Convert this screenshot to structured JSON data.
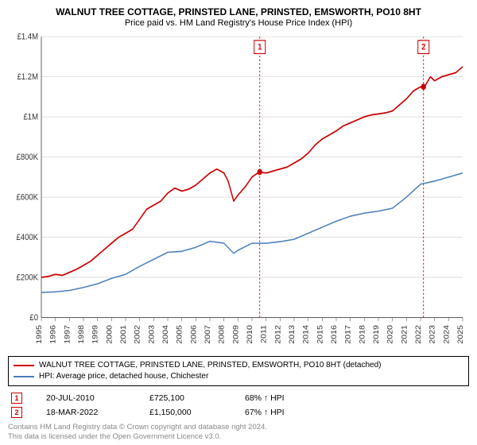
{
  "title": "WALNUT TREE COTTAGE, PRINSTED LANE, PRINSTED, EMSWORTH, PO10 8HT",
  "subtitle": "Price paid vs. HM Land Registry's House Price Index (HPI)",
  "chart": {
    "type": "line",
    "background_color": "#ffffff",
    "grid_color": "#d9d9d9",
    "axis_color": "#666666",
    "x": {
      "min": 1995,
      "max": 2025,
      "tick_step": 1
    },
    "y": {
      "min": 0,
      "max": 1400000,
      "tick_step": 200000,
      "tick_labels": [
        "£0",
        "£200K",
        "£400K",
        "£600K",
        "£800K",
        "£1M",
        "£1.2M",
        "£1.4M"
      ]
    },
    "series": [
      {
        "name": "property",
        "label": "WALNUT TREE COTTAGE, PRINSTED LANE, PRINSTED, EMSWORTH, PO10 8HT (detached)",
        "color": "#cc0000",
        "line_width": 1.5,
        "points": [
          [
            1995,
            200000
          ],
          [
            1995.5,
            205000
          ],
          [
            1996,
            215000
          ],
          [
            1996.5,
            210000
          ],
          [
            1997,
            225000
          ],
          [
            1997.5,
            240000
          ],
          [
            1998,
            260000
          ],
          [
            1998.5,
            280000
          ],
          [
            1999,
            310000
          ],
          [
            1999.5,
            340000
          ],
          [
            2000,
            370000
          ],
          [
            2000.5,
            400000
          ],
          [
            2001,
            420000
          ],
          [
            2001.5,
            440000
          ],
          [
            2002,
            490000
          ],
          [
            2002.5,
            540000
          ],
          [
            2003,
            560000
          ],
          [
            2003.5,
            580000
          ],
          [
            2004,
            620000
          ],
          [
            2004.5,
            645000
          ],
          [
            2005,
            630000
          ],
          [
            2005.5,
            640000
          ],
          [
            2006,
            660000
          ],
          [
            2006.5,
            690000
          ],
          [
            2007,
            720000
          ],
          [
            2007.5,
            740000
          ],
          [
            2008,
            720000
          ],
          [
            2008.3,
            680000
          ],
          [
            2008.7,
            580000
          ],
          [
            2009,
            610000
          ],
          [
            2009.5,
            650000
          ],
          [
            2010,
            700000
          ],
          [
            2010.5,
            725000
          ],
          [
            2011,
            720000
          ],
          [
            2011.5,
            730000
          ],
          [
            2012,
            740000
          ],
          [
            2012.5,
            750000
          ],
          [
            2013,
            770000
          ],
          [
            2013.5,
            790000
          ],
          [
            2014,
            820000
          ],
          [
            2014.5,
            860000
          ],
          [
            2015,
            890000
          ],
          [
            2015.5,
            910000
          ],
          [
            2016,
            930000
          ],
          [
            2016.5,
            955000
          ],
          [
            2017,
            970000
          ],
          [
            2017.5,
            985000
          ],
          [
            2018,
            1000000
          ],
          [
            2018.5,
            1010000
          ],
          [
            2019,
            1015000
          ],
          [
            2019.5,
            1020000
          ],
          [
            2020,
            1030000
          ],
          [
            2020.5,
            1060000
          ],
          [
            2021,
            1090000
          ],
          [
            2021.5,
            1130000
          ],
          [
            2022,
            1150000
          ],
          [
            2022.2,
            1140000
          ],
          [
            2022.7,
            1200000
          ],
          [
            2023,
            1180000
          ],
          [
            2023.5,
            1200000
          ],
          [
            2024,
            1210000
          ],
          [
            2024.5,
            1220000
          ],
          [
            2025,
            1250000
          ]
        ]
      },
      {
        "name": "hpi",
        "label": "HPI: Average price, detached house, Chichester",
        "color": "#4a7ebb",
        "line_width": 1.3,
        "points": [
          [
            1995,
            125000
          ],
          [
            1996,
            128000
          ],
          [
            1997,
            135000
          ],
          [
            1998,
            150000
          ],
          [
            1999,
            168000
          ],
          [
            2000,
            195000
          ],
          [
            2001,
            215000
          ],
          [
            2002,
            255000
          ],
          [
            2003,
            290000
          ],
          [
            2004,
            325000
          ],
          [
            2005,
            330000
          ],
          [
            2006,
            350000
          ],
          [
            2007,
            380000
          ],
          [
            2008,
            370000
          ],
          [
            2008.7,
            320000
          ],
          [
            2009,
            335000
          ],
          [
            2010,
            370000
          ],
          [
            2011,
            370000
          ],
          [
            2012,
            378000
          ],
          [
            2013,
            390000
          ],
          [
            2014,
            420000
          ],
          [
            2015,
            450000
          ],
          [
            2016,
            480000
          ],
          [
            2017,
            505000
          ],
          [
            2018,
            520000
          ],
          [
            2019,
            530000
          ],
          [
            2020,
            545000
          ],
          [
            2021,
            600000
          ],
          [
            2022,
            665000
          ],
          [
            2023,
            680000
          ],
          [
            2024,
            700000
          ],
          [
            2025,
            720000
          ]
        ]
      }
    ],
    "markers": [
      {
        "n": "1",
        "date_x": 2010.55,
        "date_label": "20-JUL-2010",
        "price": 725100,
        "price_label": "£725,100",
        "pct": "68% ↑ HPI"
      },
      {
        "n": "2",
        "date_x": 2022.21,
        "date_label": "18-MAR-2022",
        "price": 1150000,
        "price_label": "£1,150,000",
        "pct": "67% ↑ HPI"
      }
    ],
    "marker_line_color": "#cc0000",
    "marker_dot_color": "#cc0000",
    "marker_badge_border": "#cc0000",
    "marker_badge_text": "#cc0000"
  },
  "footer": {
    "line1": "Contains HM Land Registry data © Crown copyright and database right 2024.",
    "line2": "This data is licensed under the Open Government Licence v3.0."
  }
}
